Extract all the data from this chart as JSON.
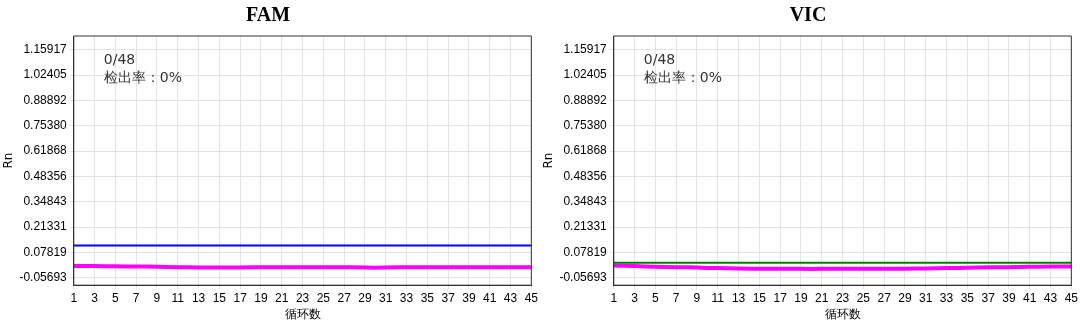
{
  "chart_data": [
    {
      "type": "line",
      "title": "FAM",
      "xlabel": "循环数",
      "ylabel": "Rn",
      "annotations": [
        "0/48",
        "检出率：0%"
      ],
      "x": [
        1,
        2,
        3,
        4,
        5,
        6,
        7,
        8,
        9,
        10,
        11,
        12,
        13,
        14,
        15,
        16,
        17,
        18,
        19,
        20,
        21,
        22,
        23,
        24,
        25,
        26,
        27,
        28,
        29,
        30,
        31,
        32,
        33,
        34,
        35,
        36,
        37,
        38,
        39,
        40,
        41,
        42,
        43,
        44,
        45
      ],
      "series": [
        {
          "color": "#ff00ff",
          "values": [
            0.006,
            0.006,
            0.006,
            0.005,
            0.005,
            0.004,
            0.004,
            0.003,
            0.002,
            0.001,
            0.0,
            -0.001,
            -0.002,
            -0.002,
            -0.002,
            -0.002,
            -0.002,
            -0.001,
            -0.001,
            -0.001,
            -0.001,
            -0.001,
            -0.001,
            -0.001,
            -0.001,
            -0.001,
            -0.001,
            -0.001,
            -0.002,
            -0.003,
            -0.002,
            -0.001,
            0.0,
            0.0,
            0.0,
            0.0,
            0.0,
            0.0,
            0.0,
            0.0,
            0.0,
            0.0,
            0.0,
            0.0,
            0.0
          ]
        }
      ],
      "ref_lines": [
        {
          "axis": "y",
          "value": 0.1155,
          "color": "#0000ff"
        }
      ],
      "xlim": [
        1,
        45
      ],
      "xticks": [
        1,
        3,
        5,
        7,
        9,
        11,
        13,
        15,
        17,
        19,
        21,
        23,
        25,
        27,
        29,
        31,
        33,
        35,
        37,
        39,
        41,
        43,
        45
      ],
      "ylim": [
        -0.096,
        1.232
      ],
      "yticks": [
        -0.05693,
        0.07819,
        0.21331,
        0.34843,
        0.48356,
        0.61868,
        {
          "value": 0.7538,
          "label": "0.75380"
        },
        0.88892,
        1.02405,
        1.15917
      ],
      "grid": true,
      "line_style": "solid",
      "marker": "none"
    },
    {
      "type": "line",
      "title": "VIC",
      "xlabel": "循环数",
      "ylabel": "Rn",
      "annotations": [
        "0/48",
        "检出率：0%"
      ],
      "x": [
        1,
        2,
        3,
        4,
        5,
        6,
        7,
        8,
        9,
        10,
        11,
        12,
        13,
        14,
        15,
        16,
        17,
        18,
        19,
        20,
        21,
        22,
        23,
        24,
        25,
        26,
        27,
        28,
        29,
        30,
        31,
        32,
        33,
        34,
        35,
        36,
        37,
        38,
        39,
        40,
        41,
        42,
        43,
        44,
        45
      ],
      "series": [
        {
          "color": "#ff00ff",
          "values": [
            0.009,
            0.008,
            0.006,
            0.004,
            0.002,
            0.001,
            0.0,
            -0.001,
            -0.002,
            -0.004,
            -0.005,
            -0.006,
            -0.007,
            -0.008,
            -0.008,
            -0.008,
            -0.009,
            -0.009,
            -0.009,
            -0.01,
            -0.009,
            -0.009,
            -0.008,
            -0.008,
            -0.008,
            -0.008,
            -0.008,
            -0.008,
            -0.008,
            -0.007,
            -0.007,
            -0.006,
            -0.005,
            -0.004,
            -0.003,
            -0.002,
            -0.001,
            0.0,
            0.0,
            0.001,
            0.002,
            0.002,
            0.003,
            0.004,
            0.004
          ]
        }
      ],
      "ref_lines": [
        {
          "axis": "y",
          "value": 0.024,
          "color": "#008000"
        }
      ],
      "xlim": [
        1,
        45
      ],
      "xticks": [
        1,
        3,
        5,
        7,
        9,
        11,
        13,
        15,
        17,
        19,
        21,
        23,
        25,
        27,
        29,
        31,
        33,
        35,
        37,
        39,
        41,
        43,
        45
      ],
      "ylim": [
        -0.096,
        1.232
      ],
      "yticks": [
        -0.05693,
        0.07819,
        0.21331,
        0.34843,
        0.48356,
        0.61868,
        {
          "value": 0.7538,
          "label": "0.75380"
        },
        0.88892,
        1.02405,
        1.15917
      ],
      "grid": true,
      "line_style": "solid",
      "marker": "none"
    }
  ]
}
